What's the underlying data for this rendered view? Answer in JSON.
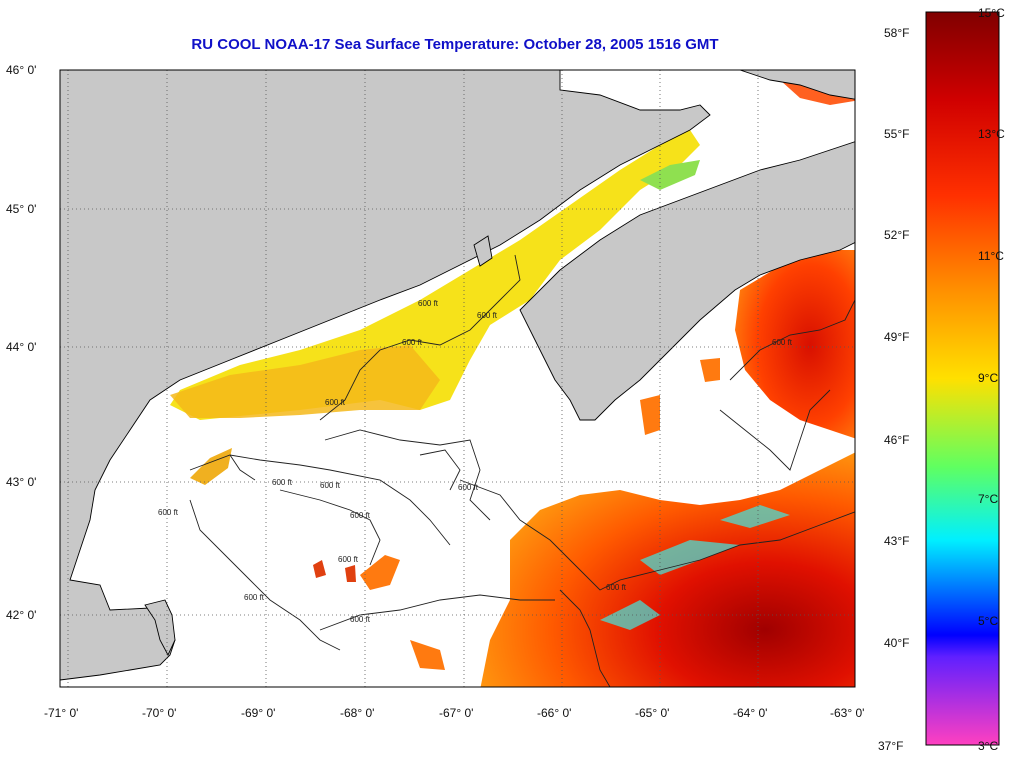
{
  "title": "RU COOL  NOAA-17  Sea Surface Temperature:  October 28, 2005 1516 GMT",
  "latitude_labels": [
    "46° 0'",
    "45° 0'",
    "44° 0'",
    "43° 0'",
    "42° 0'"
  ],
  "longitude_labels": [
    "-71° 0'",
    "-70° 0'",
    "-69° 0'",
    "-68° 0'",
    "-67° 0'",
    "-66° 0'",
    "-65° 0'",
    "-64° 0'",
    "-63° 0'"
  ],
  "colorbar": {
    "fahrenheit_labels": [
      "58°F",
      "55°F",
      "52°F",
      "49°F",
      "46°F",
      "43°F",
      "40°F",
      "37°F"
    ],
    "celsius_labels": [
      "15°C",
      "13°C",
      "11°C",
      "9°C",
      "7°C",
      "5°C",
      "3°C"
    ],
    "colors": [
      "#800000",
      "#ff0000",
      "#ff8000",
      "#ffff00",
      "#00ff80",
      "#00ffff",
      "#0000ff",
      "#c040ff",
      "#ff40c0"
    ]
  },
  "contour_labels": [
    "600 ft",
    "600 ft",
    "600 ft",
    "600 ft",
    "600 ft",
    "600 ft",
    "600 ft",
    "600 ft",
    "600 ft",
    "600 ft",
    "600 ft",
    "600 ft",
    "600 ft",
    "600 ft"
  ],
  "colors": {
    "land": "#c8c8c8",
    "no_data": "#ffffff",
    "title": "#1010c8"
  }
}
